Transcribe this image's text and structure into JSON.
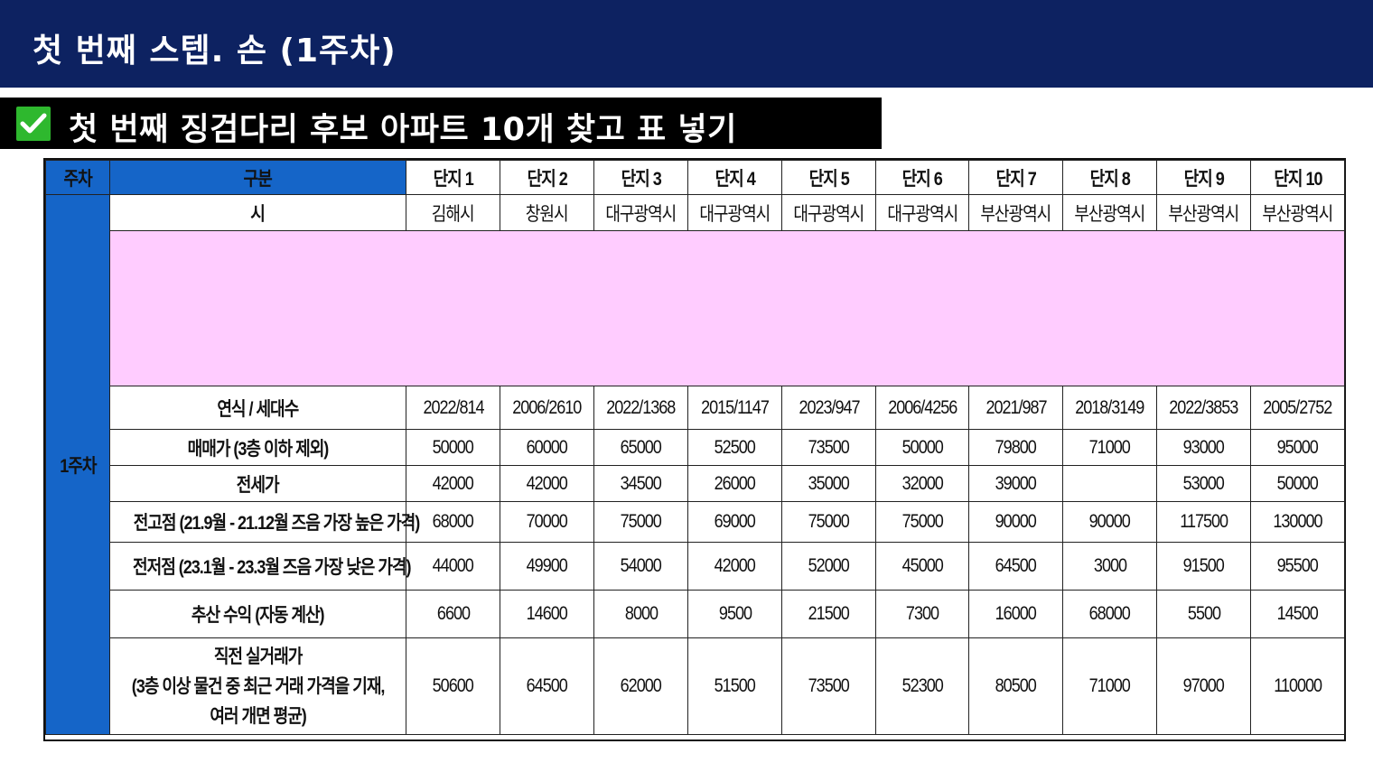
{
  "header": {
    "title": "첫 번째 스텝. 손 (1주차)"
  },
  "subheader": {
    "title": "첫 번째 징검다리 후보 아파트 10개 찾고 표 넣기",
    "check_icon": "check-mark-icon",
    "check_color": "#2eb82e"
  },
  "table": {
    "week_header": "주차",
    "category_header": "구분",
    "week_label": "1주차",
    "columns": [
      "단지 1",
      "단지 2",
      "단지 3",
      "단지 4",
      "단지 5",
      "단지 6",
      "단지 7",
      "단지 8",
      "단지 9",
      "단지 10"
    ],
    "rows": [
      {
        "label": "시",
        "values": [
          "김해시",
          "창원시",
          "대구광역시",
          "대구광역시",
          "대구광역시",
          "대구광역시",
          "부산광역시",
          "부산광역시",
          "부산광역시",
          "부산광역시"
        ]
      },
      {
        "label": "연식 / 세대수",
        "values": [
          "2022/814",
          "2006/2610",
          "2022/1368",
          "2015/1147",
          "2023/947",
          "2006/4256",
          "2021/987",
          "2018/3149",
          "2022/3853",
          "2005/2752"
        ]
      },
      {
        "label": "매매가 (3층 이하 제외)",
        "values": [
          "50000",
          "60000",
          "65000",
          "52500",
          "73500",
          "50000",
          "79800",
          "71000",
          "93000",
          "95000"
        ]
      },
      {
        "label": "전세가",
        "values": [
          "42000",
          "42000",
          "34500",
          "26000",
          "35000",
          "32000",
          "39000",
          "",
          "53000",
          "50000"
        ]
      },
      {
        "label": "전고점 (21.9월 - 21.12월 즈음 가장 높은 가격)",
        "values": [
          "68000",
          "70000",
          "75000",
          "69000",
          "75000",
          "75000",
          "90000",
          "90000",
          "117500",
          "130000"
        ]
      },
      {
        "label": "전저점 (23.1월 - 23.3월 즈음 가장 낮은 가격)",
        "values": [
          "44000",
          "49900",
          "54000",
          "42000",
          "52000",
          "45000",
          "64500",
          "3000",
          "91500",
          "95500"
        ]
      },
      {
        "label": "추산 수익 (자동 계산)",
        "values": [
          "6600",
          "14600",
          "8000",
          "9500",
          "21500",
          "7300",
          "16000",
          "68000",
          "5500",
          "14500"
        ]
      },
      {
        "label": "직전 실거래가\n(3층 이상 물건 중 최근 거래 가격을 기재,\n여러 개면 평균)",
        "values": [
          "50600",
          "64500",
          "62000",
          "51500",
          "73500",
          "52300",
          "80500",
          "71000",
          "97000",
          "110000"
        ]
      }
    ]
  }
}
